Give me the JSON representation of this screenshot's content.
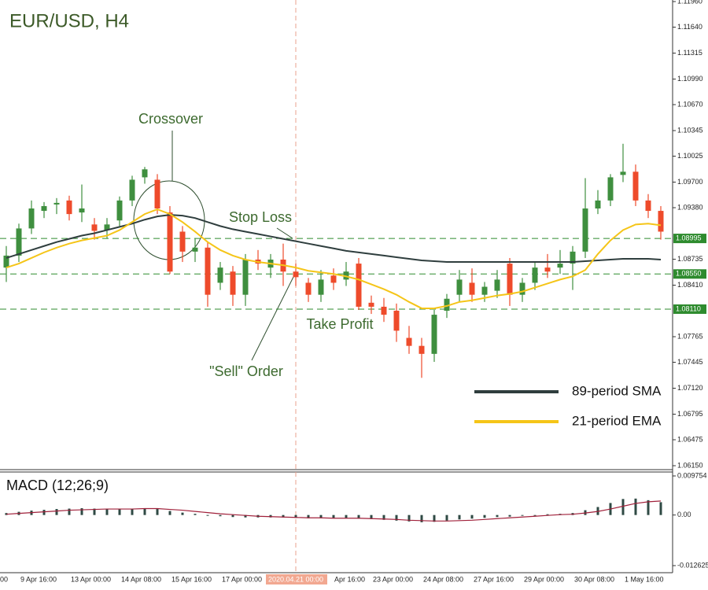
{
  "chart_data": [
    {
      "type": "candlestick",
      "title": "EUR/USD, H4",
      "categories": [
        "00",
        "9 Apr 16:00",
        null,
        null,
        null,
        "13 Apr 00:00",
        null,
        null,
        null,
        "14 Apr 08:00",
        null,
        null,
        null,
        "15 Apr 16:00",
        null,
        null,
        null,
        "17 Apr 00:00",
        null,
        null,
        null,
        null,
        null,
        "2020.04.21 00:00",
        null,
        "Apr 16:00",
        null,
        null,
        null,
        "23 Apr 00:00",
        null,
        null,
        null,
        "24 Apr 08:00",
        null,
        null,
        null,
        "27 Apr 16:00",
        null,
        null,
        null,
        "29 Apr 00:00",
        null,
        null,
        null,
        "30 Apr 08:00",
        null,
        null,
        null,
        "1 May 16:00",
        null,
        null,
        null
      ],
      "open": [
        1.0863,
        1.0878,
        1.0912,
        1.0934,
        1.0942,
        1.0947,
        1.0932,
        1.0917,
        1.091,
        1.0922,
        1.0947,
        1.0976,
        1.0973,
        1.0932,
        1.0908,
        1.0883,
        1.0888,
        1.0844,
        1.0858,
        1.0829,
        1.0873,
        1.0863,
        1.0873,
        1.0858,
        1.0844,
        1.0829,
        1.0853,
        1.0848,
        1.0868,
        1.0819,
        1.0814,
        1.0809,
        1.0775,
        1.0765,
        1.0755,
        1.0809,
        1.0829,
        1.0844,
        1.0829,
        1.0834,
        1.0868,
        1.0829,
        1.0844,
        1.0863,
        1.0863,
        1.0868,
        1.0883,
        1.0937,
        1.0947,
        1.0979,
        1.0983,
        1.0947,
        1.0934
      ],
      "high": [
        1.089,
        1.0918,
        1.0947,
        1.0945,
        1.095,
        1.0953,
        1.0967,
        1.0925,
        1.0925,
        1.0952,
        1.0978,
        1.0989,
        1.098,
        1.094,
        1.0915,
        1.09,
        1.0895,
        1.087,
        1.0865,
        1.088,
        1.0885,
        1.088,
        1.0893,
        1.0868,
        1.085,
        1.086,
        1.0862,
        1.087,
        1.0875,
        1.0828,
        1.0825,
        1.0818,
        1.079,
        1.0775,
        1.081,
        1.083,
        1.086,
        1.0862,
        1.0845,
        1.086,
        1.0875,
        1.085,
        1.087,
        1.088,
        1.0885,
        1.089,
        1.0975,
        1.096,
        1.098,
        1.1018,
        1.0992,
        1.0955,
        1.094
      ],
      "low": [
        1.0845,
        1.087,
        1.0905,
        1.0925,
        1.093,
        1.0922,
        1.092,
        1.0898,
        1.09,
        1.0915,
        1.094,
        1.0968,
        1.093,
        1.0855,
        1.087,
        1.087,
        1.0814,
        1.0835,
        1.0815,
        1.0815,
        1.086,
        1.085,
        1.084,
        1.084,
        1.082,
        1.082,
        1.0835,
        1.084,
        1.081,
        1.0805,
        1.0795,
        1.077,
        1.0755,
        1.0725,
        1.0745,
        1.08,
        1.082,
        1.082,
        1.082,
        1.0825,
        1.0815,
        1.082,
        1.0835,
        1.085,
        1.0855,
        1.0835,
        1.0875,
        1.093,
        1.094,
        1.097,
        1.094,
        1.0925,
        1.0898
      ],
      "close": [
        1.0878,
        1.0912,
        1.0937,
        1.094,
        1.0944,
        1.093,
        1.0937,
        1.0909,
        1.0917,
        1.0947,
        1.0973,
        1.0986,
        1.0937,
        1.0858,
        1.0883,
        1.0888,
        1.0829,
        1.0863,
        1.0829,
        1.0873,
        1.0868,
        1.0873,
        1.0858,
        1.0851,
        1.0829,
        1.0848,
        1.0844,
        1.0858,
        1.0814,
        1.0814,
        1.0804,
        1.0784,
        1.0765,
        1.0755,
        1.0804,
        1.0824,
        1.0848,
        1.0829,
        1.0839,
        1.0848,
        1.0829,
        1.0844,
        1.0863,
        1.0858,
        1.0868,
        1.0883,
        1.0937,
        1.0947,
        1.0976,
        1.0983,
        1.0947,
        1.0934,
        1.0908
      ],
      "up_color": "#3f8f3f",
      "down_color": "#ee4b2b",
      "series": [
        {
          "name": "89-period SMA",
          "color": "#2f3e3e",
          "values": [
            1.0875,
            1.088,
            1.0885,
            1.089,
            1.0895,
            1.0899,
            1.0903,
            1.0906,
            1.091,
            1.0914,
            1.0918,
            1.0923,
            1.0927,
            1.0929,
            1.0928,
            1.0925,
            1.092,
            1.0915,
            1.0911,
            1.0908,
            1.0905,
            1.0902,
            1.0899,
            1.0896,
            1.0893,
            1.089,
            1.0887,
            1.0884,
            1.0882,
            1.088,
            1.0878,
            1.0876,
            1.0874,
            1.0872,
            1.0871,
            1.087,
            1.087,
            1.087,
            1.087,
            1.087,
            1.087,
            1.087,
            1.087,
            1.087,
            1.087,
            1.087,
            1.0871,
            1.0872,
            1.0873,
            1.0874,
            1.0874,
            1.0874,
            1.0873
          ]
        },
        {
          "name": "21-period EMA",
          "color": "#f5c518",
          "values": [
            1.0863,
            1.0868,
            1.0875,
            1.0882,
            1.0888,
            1.0893,
            1.0897,
            1.09,
            1.0903,
            1.091,
            1.092,
            1.093,
            1.0936,
            1.093,
            1.092,
            1.0908,
            1.0895,
            1.0885,
            1.0878,
            1.0873,
            1.087,
            1.0868,
            1.0866,
            1.0863,
            1.0859,
            1.0857,
            1.0855,
            1.0852,
            1.0848,
            1.0842,
            1.0836,
            1.0829,
            1.082,
            1.0812,
            1.0812,
            1.0815,
            1.082,
            1.0822,
            1.0825,
            1.0828,
            1.083,
            1.0833,
            1.0838,
            1.0843,
            1.0848,
            1.0852,
            1.086,
            1.088,
            1.0897,
            1.091,
            1.0917,
            1.0918,
            1.0916
          ]
        }
      ],
      "levels": [
        1.08995,
        {
          "value": 1.0855,
          "label": "1.08550"
        },
        {
          "value": 1.0811,
          "label": "1.08110"
        }
      ],
      "level_color": "#2e8b2e",
      "annotations": [
        "Crossover",
        "Stop Loss",
        "Take Profit",
        "\"Sell\" Order"
      ],
      "ylim": [
        1.0615,
        1.1196
      ],
      "yticks": [
        {
          "value": 1.1196,
          "label": "1.11960"
        },
        {
          "value": 1.1164,
          "label": "1.11640"
        },
        1.11315,
        {
          "value": 1.1099,
          "label": "1.10990"
        },
        {
          "value": 1.1067,
          "label": "1.10670"
        },
        1.10345,
        1.10025,
        {
          "value": 1.097,
          "label": "1.09700"
        },
        {
          "value": 1.0938,
          "label": "1.09380"
        },
        1.08735,
        {
          "value": 1.0841,
          "label": "1.08410"
        },
        1.07765,
        1.07445,
        {
          "value": 1.0712,
          "label": "1.07120"
        },
        1.06795,
        1.06475,
        {
          "value": 1.0615,
          "label": "1.06150"
        }
      ]
    },
    {
      "type": "macd",
      "title": "MACD (12;26;9)",
      "values": [
        0.0005,
        0.0008,
        0.0011,
        0.0013,
        0.0015,
        0.0016,
        0.0017,
        0.0016,
        0.0015,
        0.0015,
        0.0016,
        0.0017,
        0.0015,
        0.001,
        0.0006,
        0.0003,
        -0.0001,
        -0.0003,
        -0.0005,
        -0.0006,
        -0.0006,
        -0.0006,
        -0.0006,
        -0.0007,
        -0.0008,
        -0.0008,
        -0.0008,
        -0.0008,
        -0.0009,
        -0.001,
        -0.0012,
        -0.0014,
        -0.0016,
        -0.0018,
        -0.0017,
        -0.0014,
        -0.0011,
        -0.0009,
        -0.0007,
        -0.0005,
        -0.0004,
        -0.0002,
        0.0,
        0.0002,
        0.0003,
        0.0005,
        0.0012,
        0.002,
        0.003,
        0.004,
        0.0041,
        0.0037,
        0.0032
      ],
      "signal": [
        0.0002,
        0.0004,
        0.0006,
        0.0008,
        0.001,
        0.0012,
        0.0013,
        0.0014,
        0.0015,
        0.0015,
        0.0015,
        0.0016,
        0.0016,
        0.0014,
        0.0012,
        0.0009,
        0.0006,
        0.0003,
        0.0001,
        -0.0001,
        -0.0003,
        -0.0004,
        -0.0005,
        -0.0006,
        -0.0007,
        -0.0007,
        -0.0008,
        -0.0008,
        -0.0008,
        -0.0009,
        -0.001,
        -0.0011,
        -0.0013,
        -0.0014,
        -0.0015,
        -0.0015,
        -0.0014,
        -0.0013,
        -0.0011,
        -0.0009,
        -0.0007,
        -0.0005,
        -0.0003,
        -0.0001,
        0.0001,
        0.0002,
        0.0005,
        0.0009,
        0.0015,
        0.0022,
        0.0029,
        0.0033,
        0.0035
      ],
      "color": "#2f4a44",
      "signal_color": "#a0203a",
      "ylim": [
        -0.012625,
        0.009754
      ],
      "yticks": [
        0.009754,
        {
          "value": 0,
          "label": "0.00"
        },
        -0.012625
      ]
    }
  ]
}
